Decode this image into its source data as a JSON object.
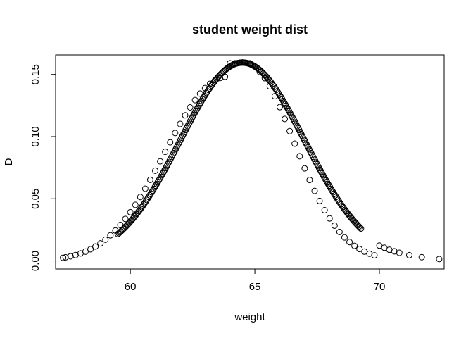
{
  "chart_data": {
    "type": "scatter",
    "title": "student weight dist",
    "xlabel": "weight",
    "ylabel": "D",
    "xlim": [
      57.0,
      72.6
    ],
    "ylim": [
      -0.0065,
      0.1657
    ],
    "x_ticks": [
      60,
      65,
      70
    ],
    "x_tick_labels": [
      "60",
      "65",
      "70"
    ],
    "y_ticks": [
      0.0,
      0.05,
      0.1,
      0.15
    ],
    "y_tick_labels": [
      "0.00",
      "0.05",
      "0.10",
      "0.15"
    ],
    "grid": false,
    "legend": "none",
    "marker": "open-circle",
    "series": [
      {
        "distribution": "normal-density",
        "mean": 64.5,
        "sd": 2.5,
        "x": [
          57.3,
          57.4,
          57.6,
          57.8,
          58.0,
          58.2,
          58.4,
          58.6,
          58.8,
          59.0,
          59.2,
          59.4,
          59.6,
          59.8,
          60.0,
          60.2,
          60.4,
          60.6,
          60.8,
          61.0,
          61.2,
          61.4,
          61.6,
          61.8,
          62.0,
          62.2,
          62.4,
          62.6,
          62.8,
          63.0,
          63.2,
          63.4,
          63.6,
          63.8,
          64.0,
          64.2,
          64.4,
          64.5,
          64.6,
          64.8,
          65.0,
          65.2,
          65.4,
          65.6,
          65.8,
          66.0,
          66.2,
          66.4,
          66.6,
          66.8,
          67.0,
          67.2,
          67.4,
          67.6,
          67.8,
          68.0,
          68.2,
          68.4,
          68.6,
          68.8,
          69.0,
          69.2,
          69.4,
          69.6,
          69.8,
          70.0,
          70.2,
          70.4,
          70.6,
          70.8,
          71.2,
          71.7,
          72.4
        ],
        "y": [
          0.0025,
          0.0029,
          0.0037,
          0.0047,
          0.006,
          0.0075,
          0.0094,
          0.0116,
          0.0141,
          0.0171,
          0.0206,
          0.0245,
          0.0289,
          0.0338,
          0.0392,
          0.0451,
          0.0514,
          0.0581,
          0.0652,
          0.0726,
          0.0801,
          0.0878,
          0.0954,
          0.1029,
          0.1102,
          0.1171,
          0.1235,
          0.1294,
          0.1346,
          0.139,
          0.1425,
          0.1453,
          0.1471,
          0.1481,
          0.159,
          0.159,
          0.1594,
          0.1596,
          0.1594,
          0.159,
          0.1564,
          0.152,
          0.147,
          0.1404,
          0.1325,
          0.1237,
          0.1142,
          0.1044,
          0.0943,
          0.0842,
          0.0744,
          0.0651,
          0.0563,
          0.0482,
          0.0408,
          0.0342,
          0.0284,
          0.0233,
          0.0189,
          0.0152,
          0.0121,
          0.0096,
          0.0075,
          0.0058,
          0.0045,
          0.0123,
          0.0106,
          0.009,
          0.0077,
          0.0065,
          0.0046,
          0.003,
          0.0015
        ]
      }
    ]
  }
}
